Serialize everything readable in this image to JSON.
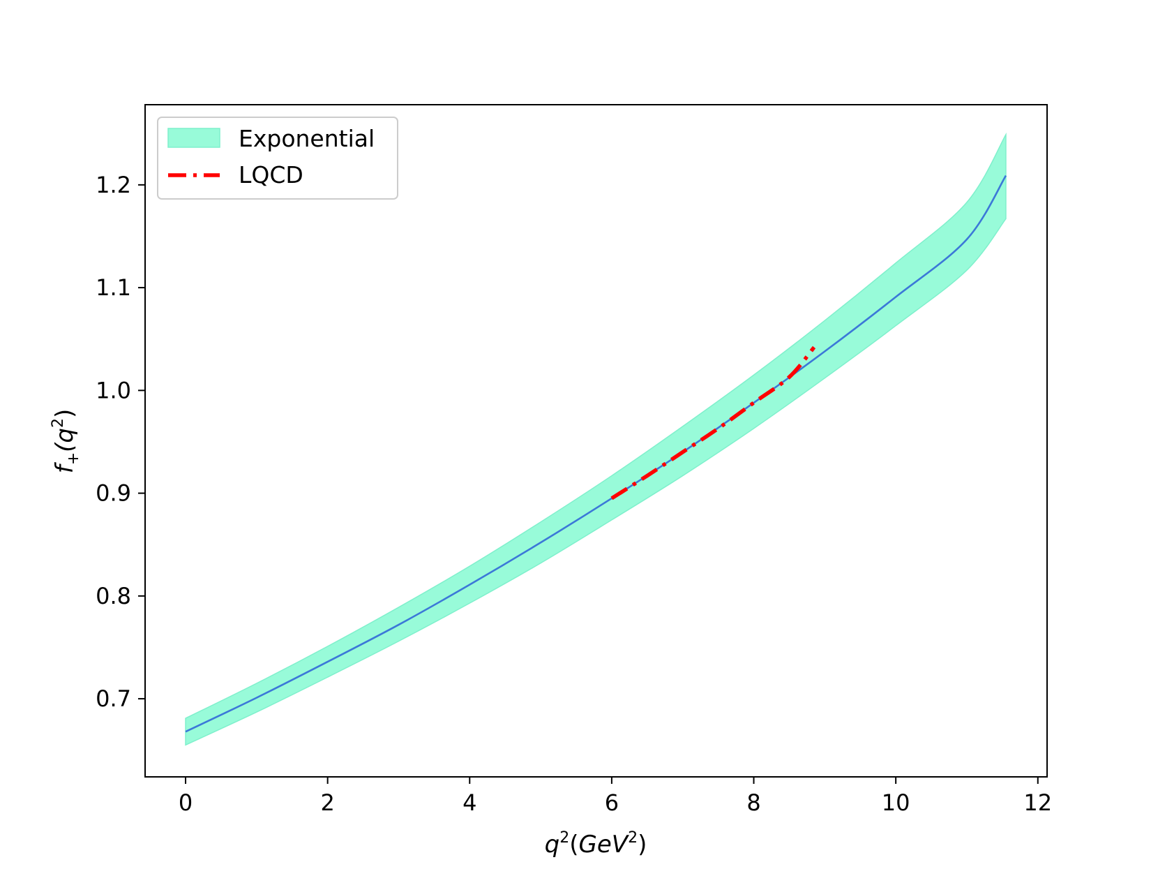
{
  "chart_data": {
    "type": "line",
    "title": "",
    "xlabel": {
      "base": "q",
      "sup": "2",
      "unit_open": "(",
      "unit": "GeV",
      "unit_sup": "2",
      "unit_close": ")"
    },
    "ylabel": {
      "base": "f",
      "sub": "+",
      "arg_open": "(q",
      "arg_sup": "2",
      "arg_close": ")"
    },
    "xlim": [
      -0.57,
      12.13
    ],
    "ylim": [
      0.624,
      1.278
    ],
    "xticks": [
      0,
      2,
      4,
      6,
      8,
      10,
      12
    ],
    "xtick_labels": [
      "0",
      "2",
      "4",
      "6",
      "8",
      "10",
      "12"
    ],
    "yticks": [
      0.7,
      0.8,
      0.9,
      1.0,
      1.1,
      1.2
    ],
    "ytick_labels": [
      "0.7",
      "0.8",
      "0.9",
      "1.0",
      "1.1",
      "1.2"
    ],
    "grid": false,
    "legend_position": "upper-left",
    "x": [
      0,
      1,
      2,
      3,
      4,
      5,
      6,
      7,
      8,
      9,
      10,
      11,
      11.55
    ],
    "series": [
      {
        "name": "Exponential",
        "kind": "band",
        "color": "#98fbd9",
        "edge_color": "#7ff0cc",
        "center": [
          0.668,
          0.701,
          0.736,
          0.772,
          0.811,
          0.852,
          0.895,
          0.94,
          0.988,
          1.038,
          1.091,
          1.147,
          1.209
        ],
        "lower": [
          0.655,
          0.687,
          0.721,
          0.756,
          0.793,
          0.832,
          0.874,
          0.917,
          0.963,
          1.012,
          1.063,
          1.117,
          1.167
        ],
        "upper": [
          0.681,
          0.715,
          0.751,
          0.789,
          0.829,
          0.872,
          0.917,
          0.965,
          1.015,
          1.068,
          1.124,
          1.183,
          1.249
        ],
        "line_color": "#3b78d8"
      },
      {
        "name": "LQCD",
        "kind": "dashed-line",
        "color": "#ff0000",
        "x": [
          6.0,
          6.5,
          7.0,
          7.5,
          8.0,
          8.5,
          8.85
        ],
        "y": [
          0.895,
          0.917,
          0.94,
          0.963,
          0.988,
          1.013,
          1.042
        ]
      }
    ]
  }
}
